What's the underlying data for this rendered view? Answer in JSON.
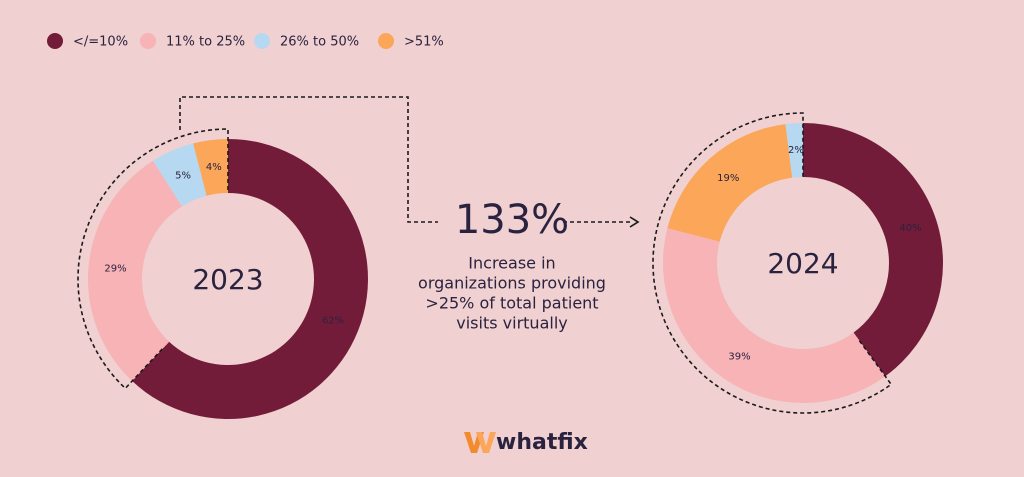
{
  "legend": [
    {
      "name": "</=10%",
      "color": "#731c3a"
    },
    {
      "name": "11% to 25%",
      "color": "#f7b3b5"
    },
    {
      "name": "26% to 50%",
      "color": "#b6d8f0"
    },
    {
      "name": ">51%",
      "color": "#fba658"
    }
  ],
  "chart_data": [
    {
      "type": "donut",
      "center_label": "2023",
      "categories": [
        "</=10%",
        "11% to 25%",
        "26% to 50%",
        ">51%"
      ],
      "values": [
        62,
        29,
        5,
        4
      ],
      "value_labels": [
        "62%",
        "29%",
        "5%",
        "4%"
      ]
    },
    {
      "type": "donut",
      "center_label": "2024",
      "categories": [
        "</=10%",
        "11% to 25%",
        ">51%",
        "26% to 50%"
      ],
      "values": [
        40,
        39,
        19,
        2
      ],
      "value_labels": [
        "40%",
        "39%",
        "19%",
        "2%"
      ]
    }
  ],
  "annotation": {
    "figure": "133%",
    "lines": [
      "Increase in",
      "organizations providing",
      ">25% of total patient",
      "visits virtually"
    ]
  },
  "brand": "whatfix"
}
